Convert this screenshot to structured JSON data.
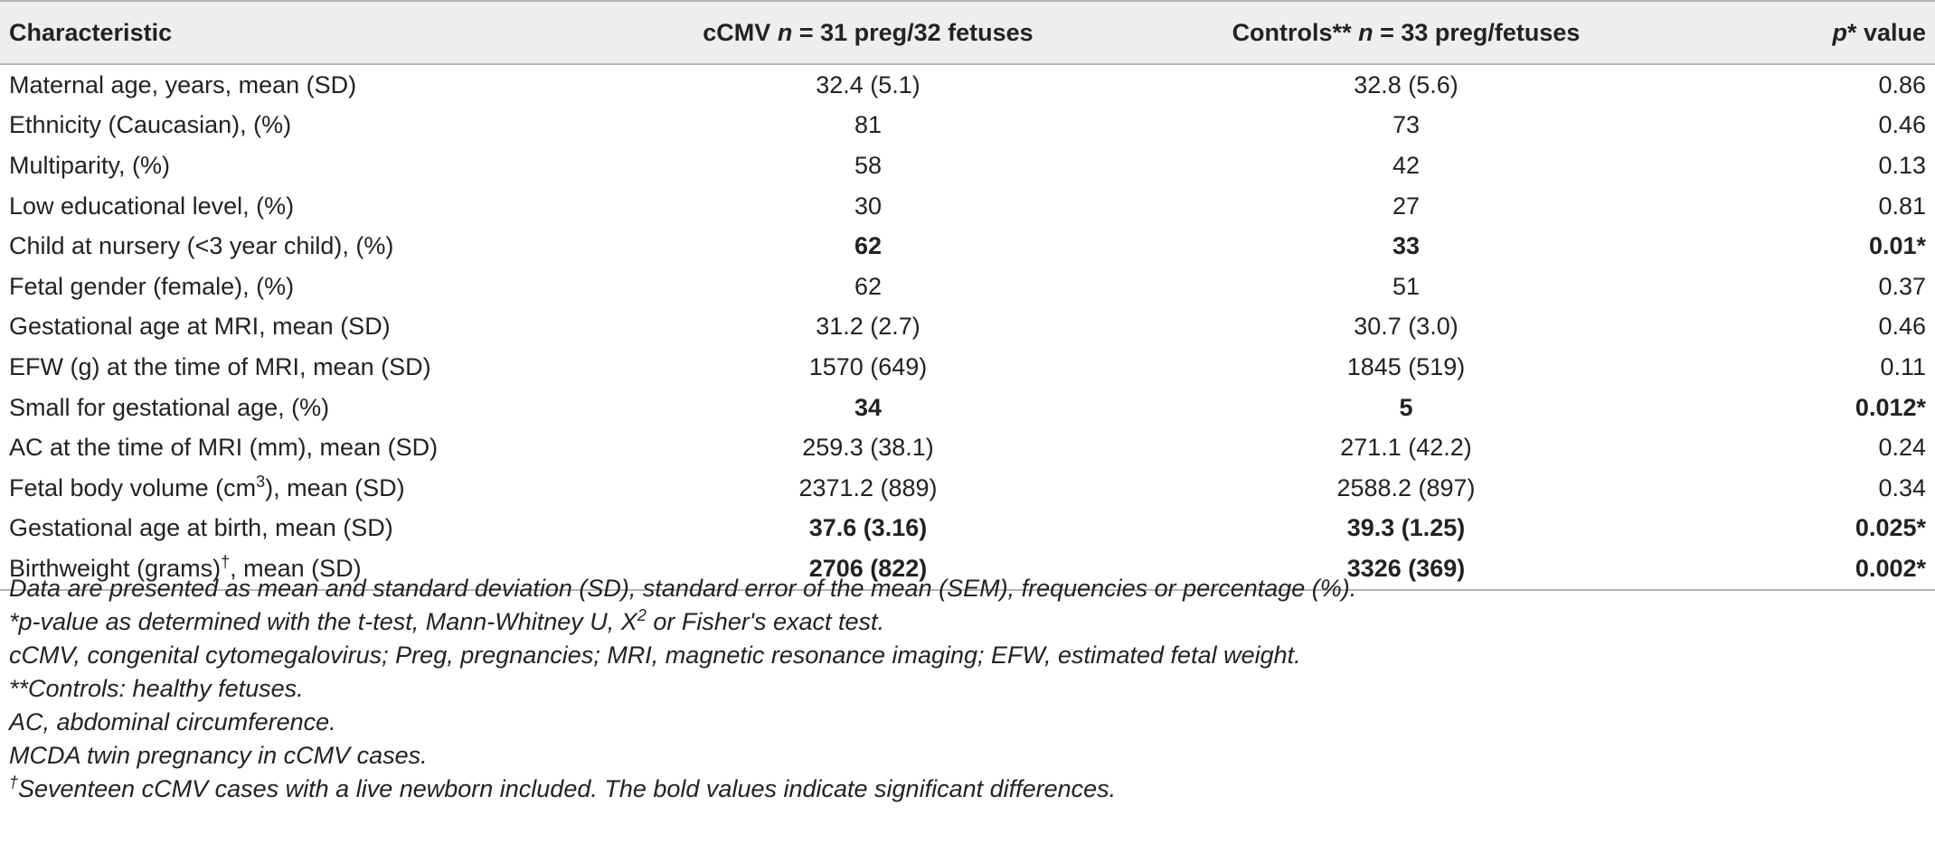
{
  "table": {
    "headers": {
      "characteristic": "Characteristic",
      "cmv_pre": "cCMV ",
      "cmv_n": "n",
      "cmv_post": " = 31 preg/32 fetuses",
      "ctrl_pre": "Controls** ",
      "ctrl_n": "n",
      "ctrl_post": " = 33 preg/fetuses",
      "p_letter": "p",
      "p_post": "* value"
    },
    "rows": [
      {
        "label": "Maternal age, years, mean (SD)",
        "cmv": "32.4 (5.1)",
        "ctrl": "32.8 (5.6)",
        "p": "0.86",
        "bold": false
      },
      {
        "label": "Ethnicity (Caucasian), (%)",
        "cmv": "81",
        "ctrl": "73",
        "p": "0.46",
        "bold": false
      },
      {
        "label": "Multiparity, (%)",
        "cmv": "58",
        "ctrl": "42",
        "p": "0.13",
        "bold": false
      },
      {
        "label": "Low educational level, (%)",
        "cmv": "30",
        "ctrl": "27",
        "p": "0.81",
        "bold": false
      },
      {
        "label": "Child at nursery (<3 year child), (%)",
        "cmv": "62",
        "ctrl": "33",
        "p": "0.01*",
        "bold": true
      },
      {
        "label": "Fetal gender (female), (%)",
        "cmv": "62",
        "ctrl": "51",
        "p": "0.37",
        "bold": false
      },
      {
        "label": "Gestational age at MRI, mean (SD)",
        "cmv": "31.2 (2.7)",
        "ctrl": "30.7 (3.0)",
        "p": "0.46",
        "bold": false
      },
      {
        "label": "EFW (g) at the time of MRI, mean (SD)",
        "cmv": "1570 (649)",
        "ctrl": "1845 (519)",
        "p": "0.11",
        "bold": false
      },
      {
        "label": "Small for gestational age, (%)",
        "cmv": "34",
        "ctrl": "5",
        "p": "0.012*",
        "bold": true
      },
      {
        "label": "AC at the time of MRI (mm), mean (SD)",
        "cmv": "259.3 (38.1)",
        "ctrl": "271.1 (42.2)",
        "p": "0.24",
        "bold": false
      },
      {
        "label_pre": "Fetal body volume (cm",
        "label_sup": "3",
        "label_post": "), mean (SD)",
        "cmv": "2371.2 (889)",
        "ctrl": "2588.2 (897)",
        "p": "0.34",
        "bold": false
      },
      {
        "label": "Gestational age at birth, mean (SD)",
        "cmv": "37.6 (3.16)",
        "ctrl": "39.3 (1.25)",
        "p": "0.025*",
        "bold": true
      },
      {
        "label_pre": "Birthweight (grams)",
        "label_sup": "†",
        "label_post": ", mean (SD)",
        "cmv": "2706 (822)",
        "ctrl": "3326 (369)",
        "p": "0.002*",
        "bold": true
      }
    ]
  },
  "footnotes": {
    "f1": "Data are presented as mean and standard deviation (SD), standard error of the mean (SEM), frequencies or percentage (%).",
    "f2_pre": "*p-value as determined with the t-test, Mann-Whitney U, X",
    "f2_sup": "2",
    "f2_post": " or Fisher's exact test.",
    "f3": "cCMV, congenital cytomegalovirus; Preg, pregnancies; MRI, magnetic resonance imaging; EFW, estimated fetal weight.",
    "f4": "**Controls: healthy fetuses.",
    "f5": "AC, abdominal circumference.",
    "f6": "MCDA twin pregnancy in cCMV cases.",
    "f7_sup": "†",
    "f7_post": "Seventeen cCMV cases with a live newborn included. The bold values indicate significant differences."
  }
}
